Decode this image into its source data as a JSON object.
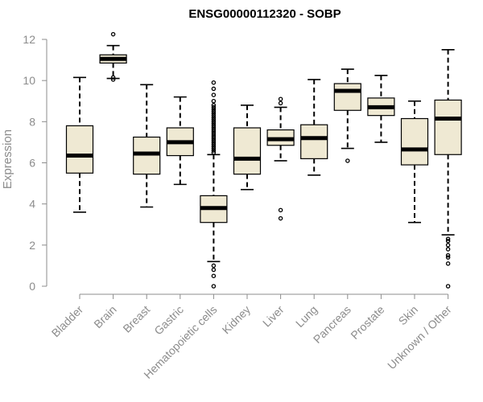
{
  "chart_data": {
    "type": "box",
    "title": "ENSG00000112320 - SOBP",
    "ylabel": "Expression",
    "ylim": [
      0,
      12
    ],
    "yticks": [
      0,
      2,
      4,
      6,
      8,
      10,
      12
    ],
    "colors": {
      "box_fill": "#efe9d3",
      "box_stroke": "#000000",
      "axis": "#8c8c8c"
    },
    "categories": [
      "Bladder",
      "Brain",
      "Breast",
      "Gastric",
      "Hematopoietic cells",
      "Kidney",
      "Liver",
      "Lung",
      "Pancreas",
      "Prostate",
      "Skin",
      "Unknown / Other"
    ],
    "boxes": [
      {
        "min": 3.6,
        "q1": 5.5,
        "median": 6.35,
        "q3": 7.8,
        "max": 10.15,
        "outliers": []
      },
      {
        "min": 10.1,
        "q1": 10.85,
        "median": 11.05,
        "q3": 11.25,
        "max": 11.7,
        "outliers": [
          12.25,
          10.15,
          10.05
        ]
      },
      {
        "min": 3.85,
        "q1": 5.45,
        "median": 6.45,
        "q3": 7.25,
        "max": 9.8,
        "outliers": []
      },
      {
        "min": 4.95,
        "q1": 6.35,
        "median": 7.0,
        "q3": 7.7,
        "max": 9.2,
        "outliers": []
      },
      {
        "min": 1.2,
        "q1": 3.1,
        "median": 3.8,
        "q3": 4.4,
        "max": 6.4,
        "outliers": [
          6.5,
          6.6,
          6.7,
          6.8,
          6.9,
          7.0,
          7.1,
          7.2,
          7.3,
          7.4,
          7.5,
          7.6,
          7.7,
          7.8,
          7.9,
          8.0,
          8.1,
          8.2,
          8.3,
          8.4,
          8.5,
          8.6,
          8.7,
          8.8,
          9.0,
          9.3,
          9.6,
          9.9,
          1.0,
          0.8,
          0.5,
          0.0
        ]
      },
      {
        "min": 4.7,
        "q1": 5.45,
        "median": 6.2,
        "q3": 7.7,
        "max": 8.8,
        "outliers": []
      },
      {
        "min": 6.1,
        "q1": 6.85,
        "median": 7.15,
        "q3": 7.6,
        "max": 8.7,
        "outliers": [
          9.1,
          8.9,
          3.7,
          3.3
        ]
      },
      {
        "min": 5.4,
        "q1": 6.2,
        "median": 7.2,
        "q3": 7.85,
        "max": 10.05,
        "outliers": []
      },
      {
        "min": 6.7,
        "q1": 8.55,
        "median": 9.5,
        "q3": 9.85,
        "max": 10.55,
        "outliers": [
          6.1
        ]
      },
      {
        "min": 7.0,
        "q1": 8.3,
        "median": 8.7,
        "q3": 9.15,
        "max": 10.25,
        "outliers": []
      },
      {
        "min": 3.1,
        "q1": 5.9,
        "median": 6.65,
        "q3": 8.15,
        "max": 9.0,
        "outliers": []
      },
      {
        "min": 2.5,
        "q1": 6.4,
        "median": 8.15,
        "q3": 9.05,
        "max": 11.5,
        "outliers": [
          2.3,
          2.2,
          2.0,
          1.8,
          1.5,
          1.4,
          1.1,
          0.0
        ]
      }
    ]
  }
}
